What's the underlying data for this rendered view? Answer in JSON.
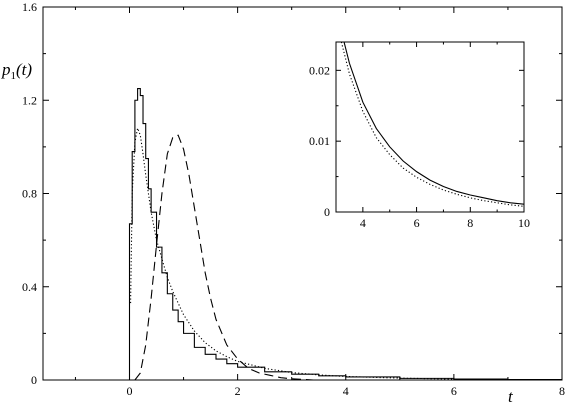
{
  "chart_data": [
    {
      "type": "line",
      "xlabel": "t",
      "ylabel": {
        "p": "p",
        "sub": "1",
        "rest": "(t)"
      },
      "xlim": [
        -1.6,
        8
      ],
      "ylim": [
        0,
        1.6
      ],
      "xticks": [
        0,
        2,
        4,
        6,
        8
      ],
      "xtick_labels": [
        "0",
        "2",
        "4",
        "6",
        "8"
      ],
      "yticks": [
        0,
        0.4,
        0.8,
        1.2,
        1.6
      ],
      "ytick_labels": [
        "0",
        "0.4",
        "0.8",
        "1.2",
        "1.6"
      ],
      "grid": false,
      "series": [
        {
          "style": "solid-step",
          "x": [
            0,
            0.05,
            0.1,
            0.15,
            0.2,
            0.25,
            0.3,
            0.35,
            0.4,
            0.5,
            0.6,
            0.7,
            0.8,
            0.9,
            1.0,
            1.2,
            1.4,
            1.6,
            1.8,
            2.0,
            2.5,
            3.0,
            3.5,
            4.0,
            5.0,
            6.0,
            7.0,
            8.0
          ],
          "y": [
            0.67,
            0.98,
            1.2,
            1.25,
            1.22,
            1.1,
            0.95,
            0.82,
            0.72,
            0.57,
            0.46,
            0.37,
            0.3,
            0.25,
            0.2,
            0.14,
            0.11,
            0.09,
            0.07,
            0.055,
            0.035,
            0.025,
            0.018,
            0.013,
            0.007,
            0.004,
            0.002,
            0.001
          ]
        },
        {
          "style": "dotted",
          "x": [
            0.02,
            0.05,
            0.1,
            0.15,
            0.2,
            0.25,
            0.3,
            0.35,
            0.4,
            0.5,
            0.6,
            0.7,
            0.8,
            1.0,
            1.2,
            1.4,
            1.6,
            1.8,
            2.0,
            2.5,
            3.0,
            3.5,
            4.0,
            5.0,
            6.0,
            7.0,
            8.0
          ],
          "y": [
            0.33,
            0.8,
            1.02,
            1.08,
            1.05,
            0.97,
            0.88,
            0.8,
            0.72,
            0.6,
            0.52,
            0.44,
            0.38,
            0.28,
            0.21,
            0.16,
            0.125,
            0.1,
            0.08,
            0.05,
            0.032,
            0.022,
            0.015,
            0.008,
            0.004,
            0.002,
            0.001
          ]
        },
        {
          "style": "dashed",
          "x": [
            0.1,
            0.2,
            0.3,
            0.4,
            0.5,
            0.6,
            0.7,
            0.8,
            0.9,
            1.0,
            1.1,
            1.2,
            1.3,
            1.4,
            1.5,
            1.6,
            1.8,
            2.0,
            2.2,
            2.4,
            2.6,
            2.8,
            3.0,
            3.4
          ],
          "y": [
            0.0,
            0.03,
            0.15,
            0.35,
            0.58,
            0.8,
            0.97,
            1.04,
            1.05,
            0.99,
            0.88,
            0.74,
            0.6,
            0.46,
            0.35,
            0.26,
            0.15,
            0.09,
            0.05,
            0.03,
            0.02,
            0.01,
            0.005,
            0.0
          ]
        }
      ]
    },
    {
      "type": "line",
      "role": "inset",
      "xlim": [
        3,
        10
      ],
      "ylim": [
        0,
        0.024
      ],
      "xticks": [
        4,
        6,
        8,
        10
      ],
      "xtick_labels": [
        "4",
        "6",
        "8",
        "10"
      ],
      "yticks": [
        0,
        0.01,
        0.02
      ],
      "ytick_labels": [
        "0",
        "0.01",
        "0.02"
      ],
      "grid": false,
      "series": [
        {
          "style": "solid",
          "x": [
            3.3,
            3.5,
            4.0,
            4.5,
            5.0,
            5.5,
            6.0,
            6.5,
            7.0,
            7.5,
            8.0,
            8.5,
            9.0,
            9.5,
            10.0
          ],
          "y": [
            0.024,
            0.021,
            0.0155,
            0.0118,
            0.0092,
            0.0072,
            0.0057,
            0.0045,
            0.0036,
            0.0029,
            0.0024,
            0.002,
            0.0016,
            0.0013,
            0.0011
          ]
        },
        {
          "style": "dotted",
          "x": [
            3.2,
            3.5,
            4.0,
            4.5,
            5.0,
            5.5,
            6.0,
            6.5,
            7.0,
            7.5,
            8.0,
            8.5,
            9.0,
            9.5,
            10.0
          ],
          "y": [
            0.024,
            0.0195,
            0.0142,
            0.0105,
            0.0081,
            0.0062,
            0.0049,
            0.0039,
            0.0031,
            0.0025,
            0.002,
            0.0016,
            0.0013,
            0.001,
            0.0008
          ]
        }
      ]
    }
  ]
}
